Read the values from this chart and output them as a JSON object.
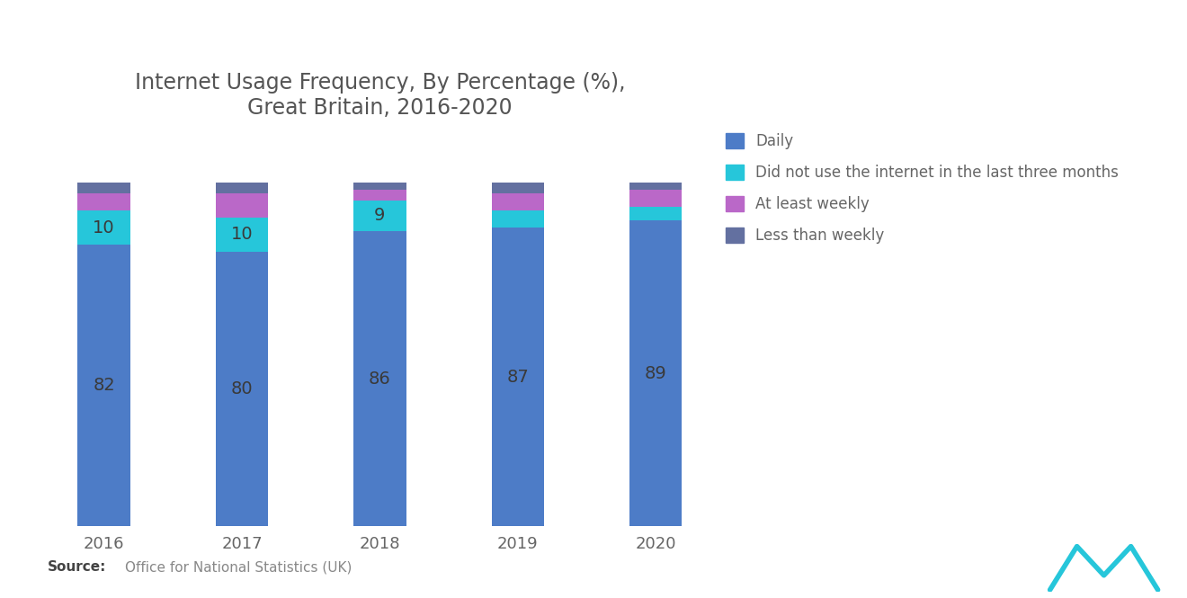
{
  "title": "Internet Usage Frequency, By Percentage (%),\nGreat Britain, 2016-2020",
  "years": [
    "2016",
    "2017",
    "2018",
    "2019",
    "2020"
  ],
  "daily": [
    82,
    80,
    86,
    87,
    89
  ],
  "no_internet": [
    10,
    10,
    9,
    5,
    4
  ],
  "at_least_weekly": [
    5,
    7,
    3,
    5,
    5
  ],
  "less_than_weekly": [
    3,
    3,
    2,
    3,
    2
  ],
  "color_daily": "#4D7CC7",
  "color_no_internet": "#26C6DA",
  "color_at_least_weekly": "#BA68C8",
  "color_less_than_weekly": "#6370A0",
  "source_bold": "Source:",
  "source_text": "Office for National Statistics (UK)",
  "legend_labels": [
    "Daily",
    "Did not use the internet in the last three months",
    "At least weekly",
    "Less than weekly"
  ],
  "bg_color": "#FFFFFF",
  "bar_width": 0.38,
  "ylim": [
    0,
    108
  ],
  "title_fontsize": 17,
  "label_fontsize": 14,
  "tick_fontsize": 13,
  "legend_fontsize": 12,
  "source_fontsize": 11
}
